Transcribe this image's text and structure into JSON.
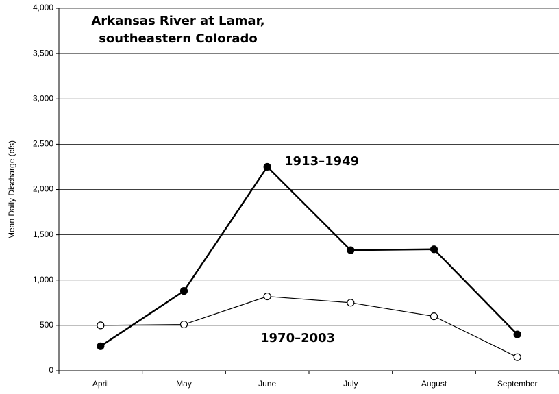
{
  "chart_data": {
    "type": "line",
    "title": [
      "Arkansas River at Lamar,",
      "southeastern Colorado"
    ],
    "y_label": "Mean Daily Discharge (cfs)",
    "categories": [
      "April",
      "May",
      "June",
      "July",
      "August",
      "September"
    ],
    "series": [
      {
        "name": "1913–1949",
        "color": "#000000",
        "marker_fill": "#000000",
        "values": [
          270,
          880,
          2250,
          1330,
          1340,
          400
        ]
      },
      {
        "name": "1970–2003",
        "color": "#000000",
        "marker_fill": "#ffffff",
        "values": [
          500,
          510,
          820,
          750,
          600,
          150
        ]
      }
    ],
    "ylim": [
      0,
      4000
    ],
    "yticks": [
      0,
      500,
      {
        "value": 1000,
        "label": "1,000"
      },
      {
        "value": 1500,
        "label": "1,500"
      },
      {
        "value": 2000,
        "label": "2,000"
      },
      {
        "value": 2500,
        "label": "2,500"
      },
      {
        "value": 3000,
        "label": "3,000"
      },
      {
        "value": 3500,
        "label": "3,500"
      },
      {
        "value": 4000,
        "label": "4,000"
      }
    ],
    "grid": true
  }
}
